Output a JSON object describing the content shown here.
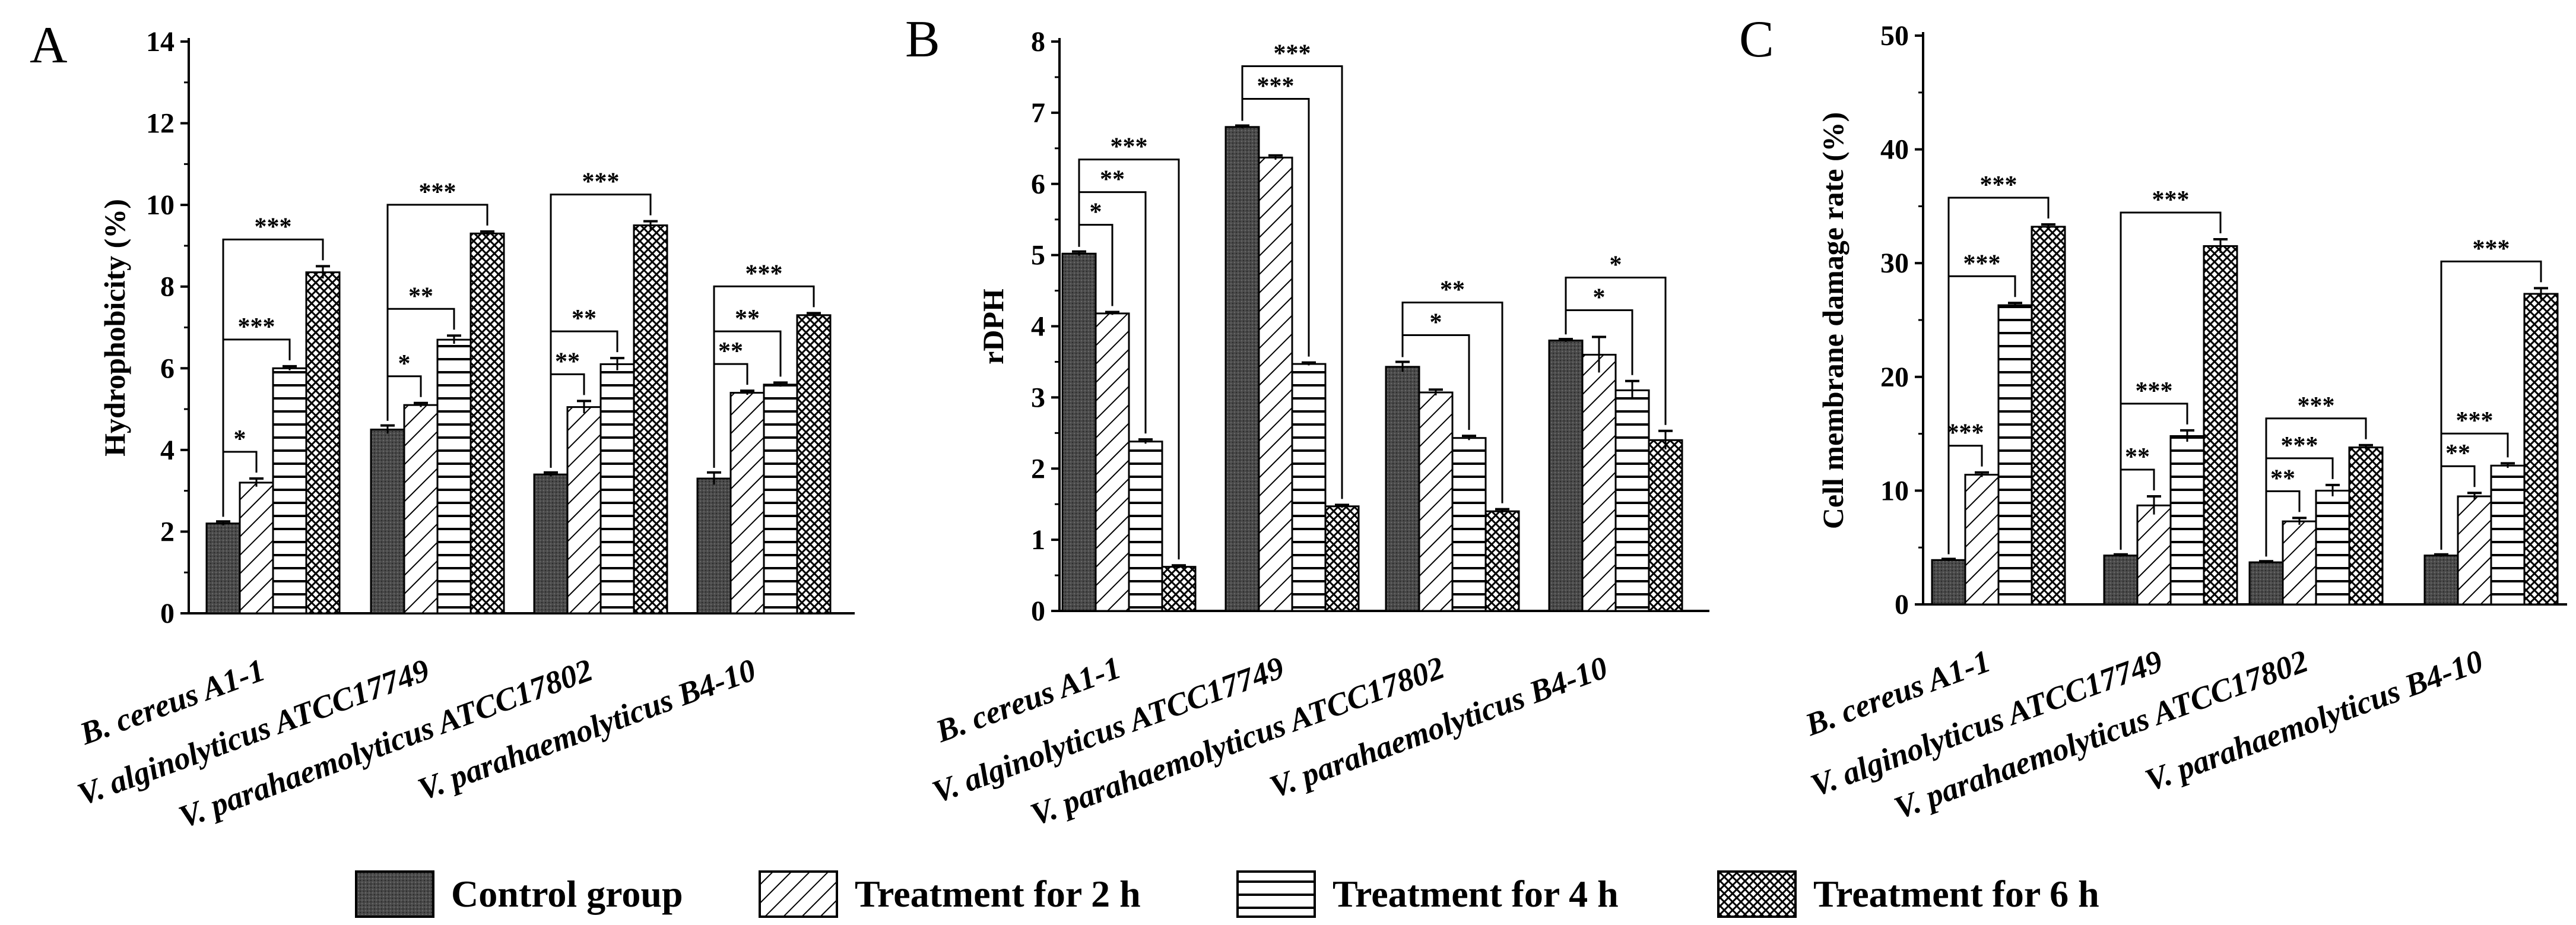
{
  "colors": {
    "control_fill": "#4a4a4a",
    "pattern_line": "#000000",
    "background": "#ffffff"
  },
  "legend": {
    "items": [
      {
        "label": "Control group",
        "pattern": "dark-dotted"
      },
      {
        "label": "Treatment for 2 h",
        "pattern": "diagonal-hatch"
      },
      {
        "label": "Treatment for 4 h",
        "pattern": "horizontal-lines"
      },
      {
        "label": "Treatment for 6 h",
        "pattern": "crosshatch"
      }
    ],
    "placement": "bottom-center"
  },
  "chart_data": [
    {
      "panel": "A",
      "type": "bar",
      "ylabel": "Hydrophobicity (%)",
      "ylim": [
        0,
        14
      ],
      "yticks": [
        0,
        2,
        4,
        6,
        8,
        10,
        12,
        14
      ],
      "categories": [
        "B. cereus A1-1",
        "V. alginolyticus ATCC17749",
        "V. parahaemolyticus ATCC17802",
        "V. parahaemolyticus B4-10"
      ],
      "series": [
        {
          "name": "Control group",
          "values": [
            2.2,
            4.5,
            3.4,
            3.3
          ],
          "errors": [
            0.05,
            0.1,
            0.05,
            0.15
          ]
        },
        {
          "name": "Treatment for 2 h",
          "values": [
            3.2,
            5.1,
            5.05,
            5.4
          ],
          "errors": [
            0.1,
            0.05,
            0.15,
            0.05
          ]
        },
        {
          "name": "Treatment for 4 h",
          "values": [
            6.0,
            6.7,
            6.1,
            5.6
          ],
          "errors": [
            0.05,
            0.1,
            0.15,
            0.05
          ]
        },
        {
          "name": "Treatment for 6 h",
          "values": [
            8.35,
            9.3,
            9.5,
            7.3
          ],
          "errors": [
            0.15,
            0.05,
            0.1,
            0.05
          ]
        }
      ],
      "significance": [
        {
          "category": 0,
          "to_series": 1,
          "level": 1,
          "label": "*"
        },
        {
          "category": 0,
          "to_series": 2,
          "level": 1,
          "label": "***"
        },
        {
          "category": 0,
          "to_series": 3,
          "level": 1,
          "label": "***"
        },
        {
          "category": 1,
          "to_series": 1,
          "level": 1,
          "label": "*"
        },
        {
          "category": 1,
          "to_series": 2,
          "level": 1,
          "label": "**"
        },
        {
          "category": 1,
          "to_series": 3,
          "level": 1,
          "label": "***"
        },
        {
          "category": 2,
          "to_series": 1,
          "level": 1,
          "label": "**"
        },
        {
          "category": 2,
          "to_series": 2,
          "level": 1,
          "label": "**"
        },
        {
          "category": 2,
          "to_series": 3,
          "level": 1,
          "label": "***"
        },
        {
          "category": 3,
          "to_series": 1,
          "level": 1,
          "label": "**"
        },
        {
          "category": 3,
          "to_series": 2,
          "level": 1,
          "label": "**"
        },
        {
          "category": 3,
          "to_series": 3,
          "level": 1,
          "label": "***"
        }
      ]
    },
    {
      "panel": "B",
      "type": "bar",
      "ylabel": "rDPH",
      "ylim": [
        0,
        8
      ],
      "yticks": [
        0,
        1,
        2,
        3,
        4,
        5,
        6,
        7,
        8
      ],
      "categories": [
        "B. cereus A1-1",
        "V. alginolyticus ATCC17749",
        "V. parahaemolyticus ATCC17802",
        "V. parahaemolyticus B4-10"
      ],
      "series": [
        {
          "name": "Control group",
          "values": [
            5.02,
            6.8,
            3.43,
            3.8
          ],
          "errors": [
            0.03,
            0.02,
            0.07,
            0.02
          ]
        },
        {
          "name": "Treatment for 2 h",
          "values": [
            4.18,
            6.37,
            3.07,
            3.6
          ],
          "errors": [
            0.02,
            0.03,
            0.04,
            0.25
          ]
        },
        {
          "name": "Treatment for 4 h",
          "values": [
            2.38,
            3.47,
            2.43,
            3.1
          ],
          "errors": [
            0.03,
            0.02,
            0.03,
            0.13
          ]
        },
        {
          "name": "Treatment for 6 h",
          "values": [
            0.62,
            1.47,
            1.4,
            2.4
          ],
          "errors": [
            0.02,
            0.02,
            0.03,
            0.13
          ]
        }
      ],
      "significance": [
        {
          "category": 0,
          "to_series": 1,
          "level": 2,
          "label": "*"
        },
        {
          "category": 0,
          "to_series": 2,
          "level": 2,
          "label": "**"
        },
        {
          "category": 0,
          "to_series": 3,
          "level": 2,
          "label": "***"
        },
        {
          "category": 1,
          "to_series": 2,
          "level": 2,
          "label": "***"
        },
        {
          "category": 1,
          "to_series": 3,
          "level": 2,
          "label": "***"
        },
        {
          "category": 2,
          "to_series": 2,
          "level": 2,
          "label": "*"
        },
        {
          "category": 2,
          "to_series": 3,
          "level": 2,
          "label": "**"
        },
        {
          "category": 3,
          "to_series": 2,
          "level": 2,
          "label": "*"
        },
        {
          "category": 3,
          "to_series": 3,
          "level": 2,
          "label": "*"
        }
      ]
    },
    {
      "panel": "C",
      "type": "bar",
      "ylabel": "Cell membrane damage rate (%)",
      "ylim": [
        0,
        50
      ],
      "yticks": [
        0,
        10,
        20,
        30,
        40,
        50
      ],
      "categories": [
        "B. cereus A1-1",
        "V. alginolyticus ATCC17749",
        "V. parahaemolyticus ATCC17802",
        "V. parahaemolyticus B4-10"
      ],
      "series": [
        {
          "name": "Control group",
          "values": [
            3.9,
            4.3,
            3.7,
            4.3
          ],
          "errors": [
            0.1,
            0.1,
            0.1,
            0.1
          ]
        },
        {
          "name": "Treatment for 2 h",
          "values": [
            11.4,
            8.7,
            7.3,
            9.5
          ],
          "errors": [
            0.2,
            0.8,
            0.3,
            0.3
          ]
        },
        {
          "name": "Treatment for 4 h",
          "values": [
            26.3,
            14.8,
            10.0,
            12.2
          ],
          "errors": [
            0.2,
            0.5,
            0.5,
            0.2
          ]
        },
        {
          "name": "Treatment for 6 h",
          "values": [
            33.2,
            31.5,
            13.8,
            27.3
          ],
          "errors": [
            0.2,
            0.6,
            0.2,
            0.5
          ]
        }
      ],
      "significance": [
        {
          "category": 0,
          "to_series": 1,
          "level": 3,
          "label": "***"
        },
        {
          "category": 0,
          "to_series": 2,
          "level": 3,
          "label": "***"
        },
        {
          "category": 0,
          "to_series": 3,
          "level": 3,
          "label": "***"
        },
        {
          "category": 1,
          "to_series": 1,
          "level": 3,
          "label": "**"
        },
        {
          "category": 1,
          "to_series": 2,
          "level": 3,
          "label": "***"
        },
        {
          "category": 1,
          "to_series": 3,
          "level": 3,
          "label": "***"
        },
        {
          "category": 2,
          "to_series": 1,
          "level": 3,
          "label": "**"
        },
        {
          "category": 2,
          "to_series": 2,
          "level": 3,
          "label": "***"
        },
        {
          "category": 2,
          "to_series": 3,
          "level": 3,
          "label": "***"
        },
        {
          "category": 3,
          "to_series": 1,
          "level": 3,
          "label": "**"
        },
        {
          "category": 3,
          "to_series": 2,
          "level": 3,
          "label": "***"
        },
        {
          "category": 3,
          "to_series": 3,
          "level": 3,
          "label": "***"
        }
      ]
    }
  ]
}
